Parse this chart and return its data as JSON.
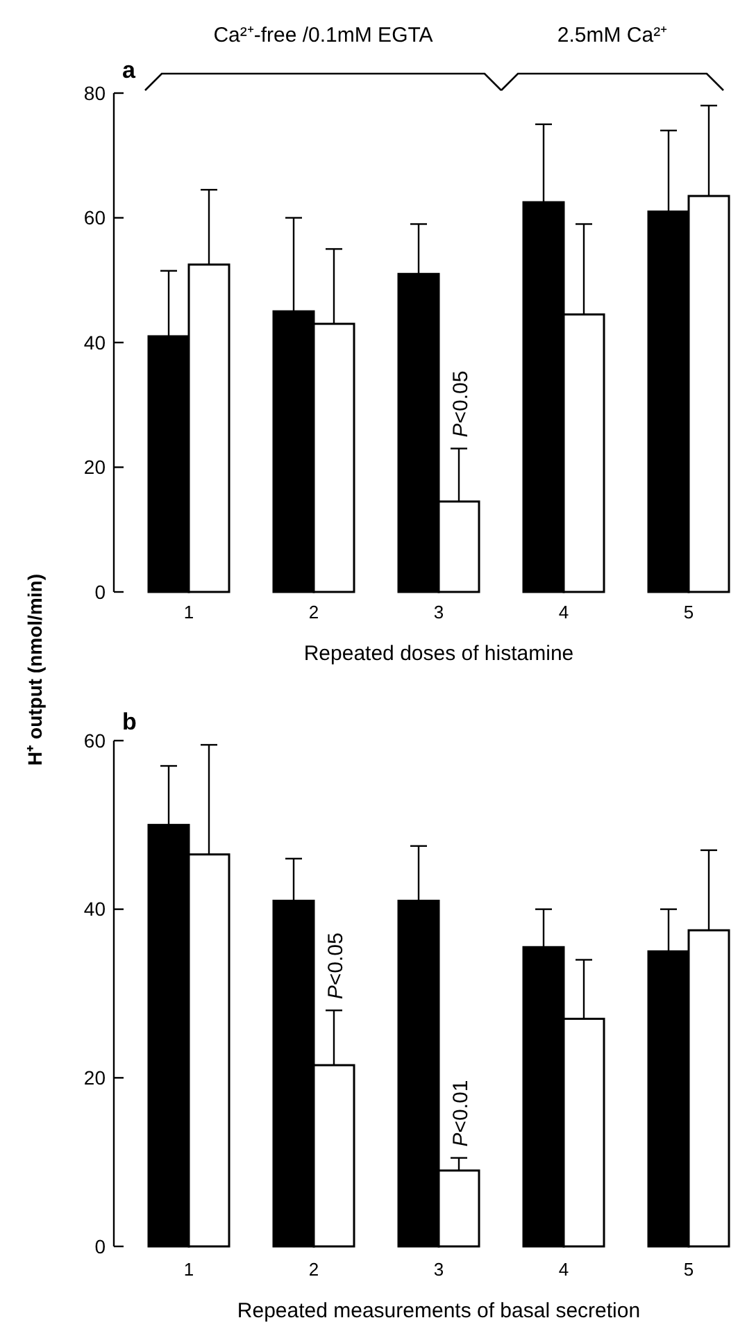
{
  "chart_data": [
    {
      "type": "bar",
      "title": "a",
      "xlabel": "Repeated doses of histamine",
      "ylabel": "H⁺ output (nmol/min)",
      "categories": [
        "1",
        "2",
        "3",
        "4",
        "5"
      ],
      "series": [
        {
          "color": "#000000",
          "values": [
            41,
            45,
            51,
            62.5,
            61
          ],
          "errors": [
            [
              41,
              51.5
            ],
            [
              45,
              60
            ],
            [
              51,
              59
            ],
            [
              62.5,
              75
            ],
            [
              61,
              74
            ]
          ]
        },
        {
          "color": "#ffffff",
          "values": [
            52.5,
            43,
            14.5,
            44.5,
            63.5
          ],
          "errors": [
            [
              52.5,
              64.5
            ],
            [
              43,
              55
            ],
            [
              14.5,
              23
            ],
            [
              44.5,
              59
            ],
            [
              63.5,
              78
            ]
          ]
        }
      ],
      "ylim": [
        0,
        80
      ],
      "yticks": [
        0,
        20,
        40,
        60,
        80
      ],
      "annotations": [
        "Ca²⁺-free /0.1mM EGTA",
        "2.5mM Ca²⁺",
        {
          "text": "P<0.05",
          "x": "3",
          "y": 23
        }
      ]
    },
    {
      "type": "bar",
      "title": "b",
      "xlabel": "Repeated measurements of basal secretion",
      "categories": [
        "1",
        "2",
        "3",
        "4",
        "5"
      ],
      "series": [
        {
          "color": "#000000",
          "values": [
            50,
            41,
            41,
            35.5,
            35
          ],
          "errors": [
            [
              50,
              57
            ],
            [
              41,
              46
            ],
            [
              41,
              47.5
            ],
            [
              35.5,
              40
            ],
            [
              35,
              40
            ]
          ]
        },
        {
          "color": "#ffffff",
          "values": [
            46.5,
            21.5,
            9,
            27,
            37.5
          ],
          "errors": [
            [
              46.5,
              59.5
            ],
            [
              21.5,
              28
            ],
            [
              9,
              10.5
            ],
            [
              27,
              34
            ],
            [
              37.5,
              47
            ]
          ]
        }
      ],
      "ylim": [
        0,
        60
      ],
      "yticks": [
        0,
        20,
        40,
        60
      ],
      "annotations": [
        {
          "text": "P<0.05",
          "x": "2",
          "y": 28
        },
        {
          "text": "P<0.01",
          "x": "3",
          "y": 10.5
        }
      ]
    }
  ]
}
